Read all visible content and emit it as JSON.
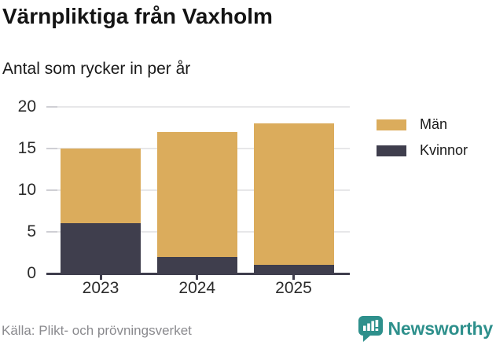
{
  "chart_data": {
    "type": "bar",
    "stacked": true,
    "title": "Värnpliktiga från Vaxholm",
    "subtitle": "Antal som rycker in per år",
    "categories": [
      "2023",
      "2024",
      "2025"
    ],
    "series": [
      {
        "name": "Män",
        "color": "#DBAC5C",
        "values": [
          9,
          15,
          17
        ]
      },
      {
        "name": "Kvinnor",
        "color": "#3F3E4D",
        "values": [
          6,
          2,
          1
        ]
      }
    ],
    "totals": [
      15,
      17,
      18
    ],
    "ylim": [
      0,
      20
    ],
    "yticks": [
      0,
      5,
      10,
      15,
      20
    ],
    "grid": true,
    "legend_position": "right",
    "source": "Källa: Plikt- och prövningsverket"
  },
  "footer": {
    "logo_text": "Newsworthy"
  },
  "colors": {
    "accent_teal": "#2E908C",
    "grid": "#E7E7E9",
    "axis": "#3F3E4D",
    "source_text": "#8A8A8E"
  }
}
